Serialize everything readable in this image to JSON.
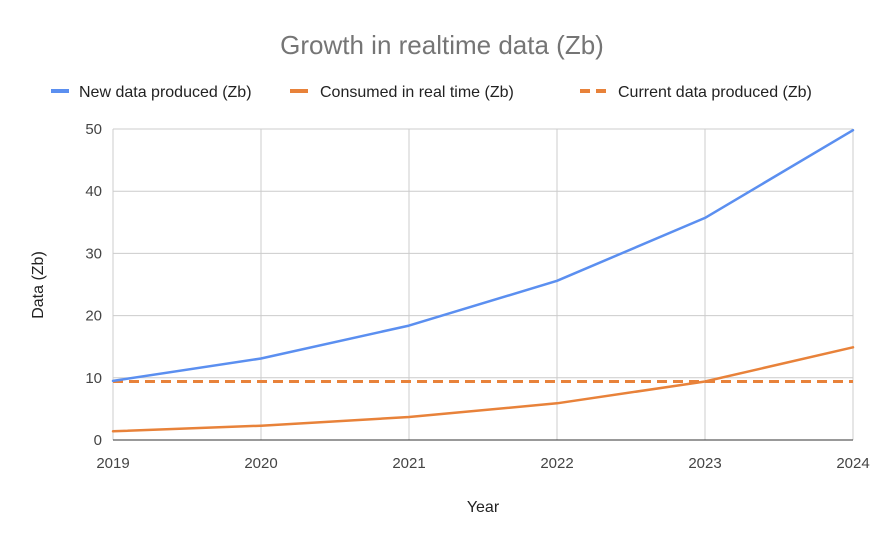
{
  "chart_data": {
    "type": "line",
    "title": "Growth in realtime data (Zb)",
    "xlabel": "Year",
    "ylabel": "Data (Zb)",
    "x": [
      "2019",
      "2020",
      "2021",
      "2022",
      "2023",
      "2024"
    ],
    "ylim": [
      0,
      50
    ],
    "yticks": [
      0,
      10,
      20,
      30,
      40,
      50
    ],
    "grid": true,
    "legend_position": "top",
    "series": [
      {
        "name": "New data produced (Zb)",
        "values": [
          9.5,
          13.1,
          18.4,
          25.6,
          35.7,
          49.8
        ],
        "color": "#5b8ff0",
        "dash": "solid"
      },
      {
        "name": "Consumed in real time (Zb)",
        "values": [
          1.4,
          2.3,
          3.7,
          5.9,
          9.4,
          14.9
        ],
        "color": "#e8823a",
        "dash": "solid"
      },
      {
        "name": "Current data produced (Zb)",
        "values": [
          9.4,
          9.4,
          9.4,
          9.4,
          9.4,
          9.4
        ],
        "color": "#e8823a",
        "dash": "dashed"
      }
    ]
  }
}
